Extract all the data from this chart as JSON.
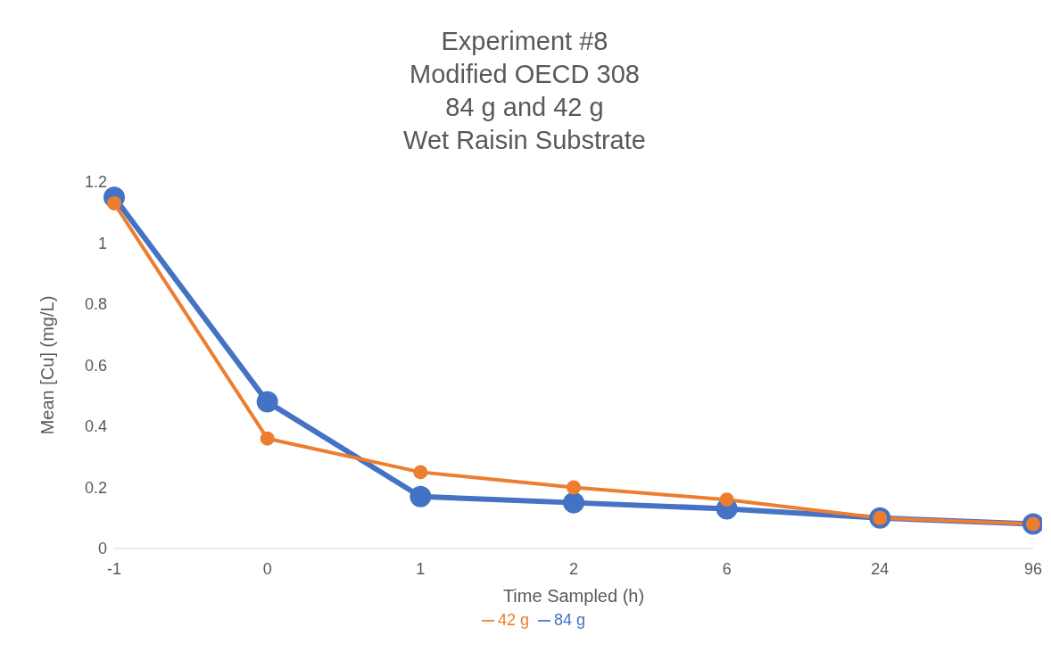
{
  "chart_data": {
    "type": "line",
    "title": "Experiment #8\nModified OECD 308\n84 g and 42 g\nWet Raisin Substrate",
    "xlabel": "Time Sampled (h)",
    "ylabel": "Mean [Cu] (mg/L)",
    "categories": [
      "-1",
      "0",
      "1",
      "2",
      "6",
      "24",
      "96"
    ],
    "series": [
      {
        "name": "84 g",
        "color": "#4472c4",
        "values": [
          1.15,
          0.48,
          0.17,
          0.15,
          0.13,
          0.1,
          0.08
        ]
      },
      {
        "name": "42 g",
        "color": "#ed7d31",
        "values": [
          1.13,
          0.36,
          0.25,
          0.2,
          0.16,
          0.1,
          0.08
        ]
      }
    ],
    "ylim": [
      0,
      1.2
    ],
    "yticks": [
      0,
      0.2,
      0.4,
      0.6,
      0.8,
      1,
      1.2
    ],
    "grid": false,
    "legend": "bottom",
    "marker": "circle",
    "line_style": "solid"
  }
}
